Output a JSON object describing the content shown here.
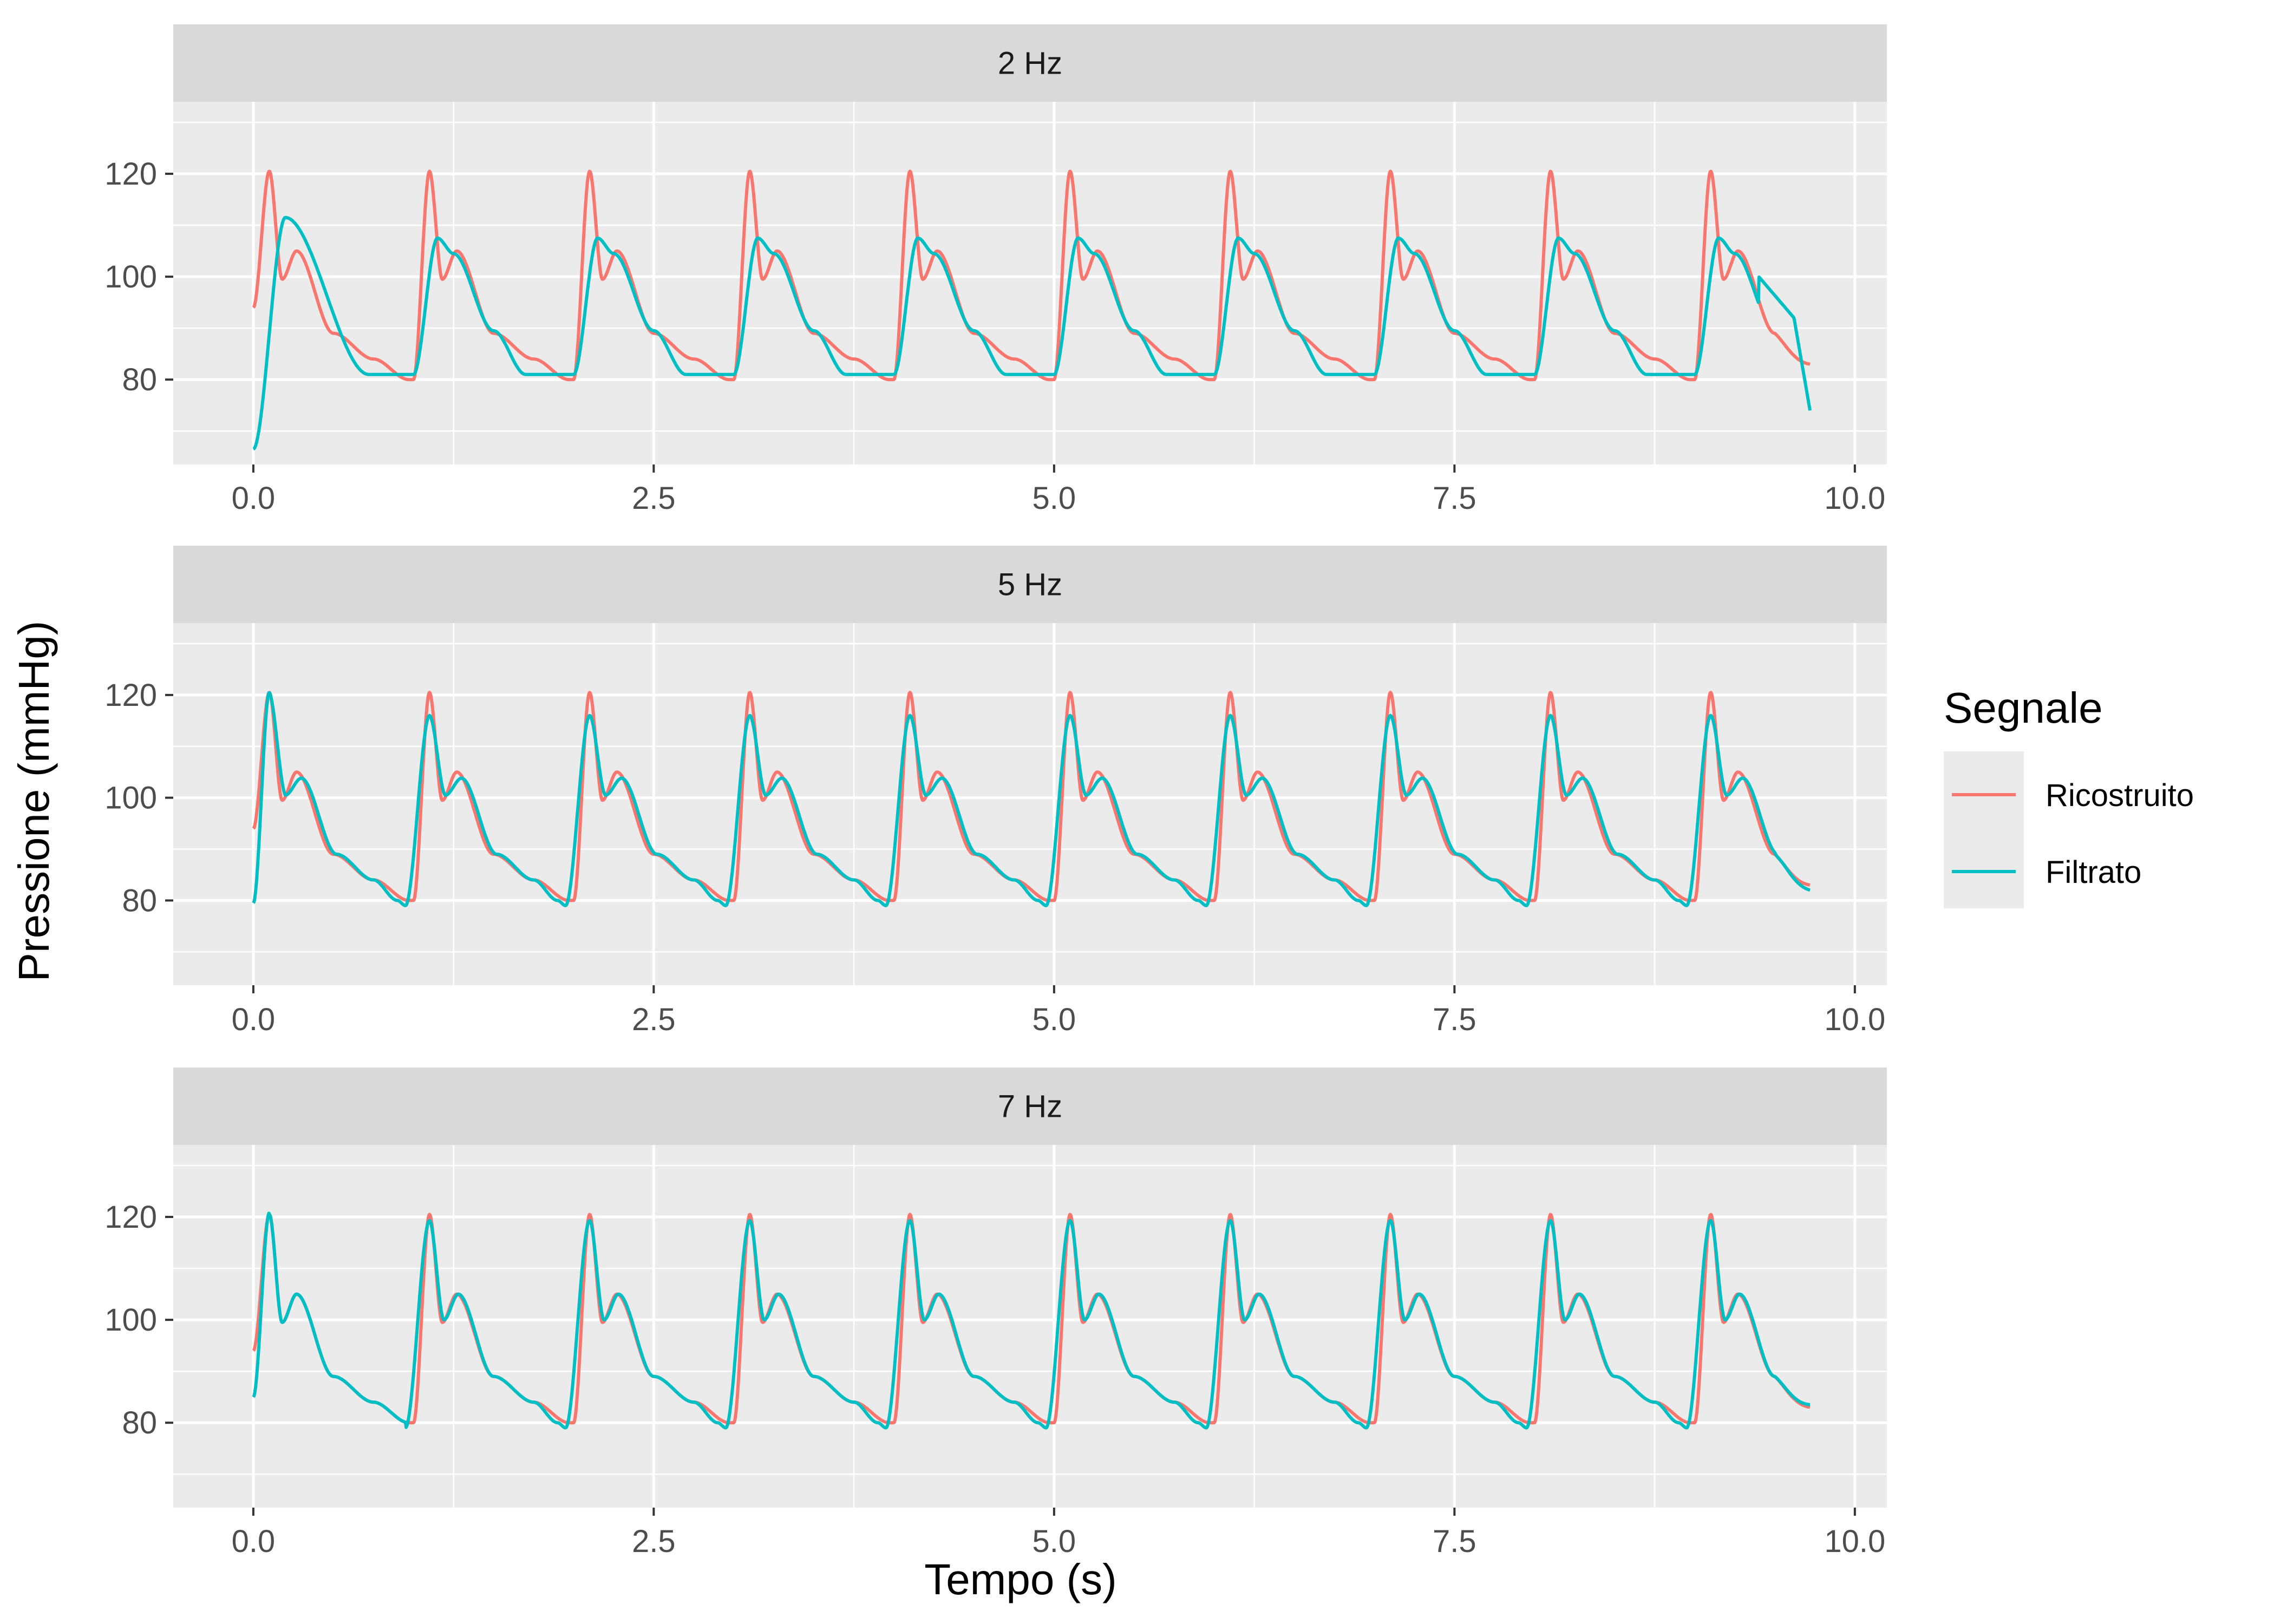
{
  "chart_data": {
    "type": "line",
    "xlabel": "Tempo (s)",
    "ylabel": "Pressione (mmHg)",
    "xlim": [
      -0.5,
      10.2
    ],
    "ylim": [
      63.5,
      134
    ],
    "x_ticks": [
      0,
      2.5,
      5,
      7.5,
      10
    ],
    "x_tick_labels": [
      "0.0",
      "2.5",
      "5.0",
      "7.5",
      "10.0"
    ],
    "y_ticks": [
      80,
      100,
      120
    ],
    "y_tick_labels": [
      "80",
      "100",
      "120"
    ],
    "legend": {
      "title": "Segnale",
      "position": "right",
      "entries": [
        {
          "name": "Ricostruito",
          "color": "#F8766D"
        },
        {
          "name": "Filtrato",
          "color": "#00BFC4"
        }
      ]
    },
    "colors": {
      "panel_bg": "#EBEBEB",
      "strip_bg": "#D9D9D9",
      "grid": "#FFFFFF",
      "tick": "#333333"
    },
    "beat_model": {
      "period_s": 1.0,
      "duration_s": 9.72,
      "start_value": 94,
      "end_value": 83,
      "ricostruito_keypoints": [
        [
          0,
          80
        ],
        [
          0.1,
          120.5
        ],
        [
          0.18,
          99.5
        ],
        [
          0.27,
          105
        ],
        [
          0.5,
          89
        ],
        [
          0.75,
          84
        ],
        [
          0.97,
          80
        ]
      ]
    },
    "panels": [
      {
        "strip": "2 Hz",
        "series": [
          {
            "name": "Ricostruito",
            "x": [
              0.0,
              0.1,
              0.18,
              0.27,
              0.5,
              0.75,
              0.97,
              1.0,
              9.1,
              9.5,
              9.72
            ],
            "values": [
              94,
              120.5,
              99.5,
              105,
              89,
              84,
              80,
              80,
              120.5,
              90,
              83
            ]
          },
          {
            "name": "Filtrato",
            "x": [
              0.0,
              0.2,
              0.7,
              1.15,
              1.7,
              2.2,
              9.2,
              9.6,
              9.72
            ],
            "values": [
              66.5,
              111.5,
              81,
              107.5,
              81,
              107.5,
              107.5,
              92,
              74
            ]
          }
        ]
      },
      {
        "strip": "5 Hz",
        "series": [
          {
            "name": "Ricostruito",
            "x": [
              0.0,
              0.1,
              0.18,
              0.27,
              0.5,
              0.75,
              0.97,
              9.72
            ],
            "values": [
              94,
              120.5,
              99.5,
              105,
              89,
              84,
              80,
              83
            ]
          },
          {
            "name": "Filtrato",
            "x": [
              0.0,
              0.1,
              0.2,
              0.3,
              0.9,
              1.1,
              1.3,
              9.72
            ],
            "values": [
              79.5,
              120.5,
              100.5,
              103.8,
              79,
              116,
              103.8,
              82
            ]
          }
        ]
      },
      {
        "strip": "7 Hz",
        "series": [
          {
            "name": "Ricostruito",
            "x": [
              0.0,
              0.1,
              0.18,
              0.27,
              0.5,
              0.75,
              0.97,
              9.72
            ],
            "values": [
              94,
              120.5,
              99.5,
              105,
              89,
              84,
              80,
              83
            ]
          },
          {
            "name": "Filtrato",
            "x": [
              0.0,
              0.1,
              0.19,
              0.28,
              0.95,
              1.1,
              9.72
            ],
            "values": [
              85,
              120.8,
              100,
              105,
              79,
              119.3,
              83.5
            ]
          }
        ]
      }
    ]
  }
}
